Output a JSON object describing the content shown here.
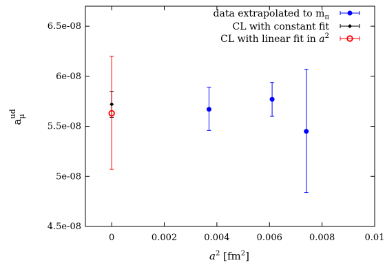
{
  "chart_data": {
    "type": "scatter",
    "title": "",
    "xlabel": "a² [fm²]",
    "ylabel": "aμ ud",
    "xlim": [
      -0.001,
      0.01
    ],
    "ylim": [
      4.5e-08,
      6.7e-08
    ],
    "x_ticks": [
      0,
      0.002,
      0.004,
      0.006,
      0.008
    ],
    "x_tick_labels": [
      "0",
      "0.002",
      "0.004",
      "0.006",
      "0.008"
    ],
    "x_tick_labels_right": "0.01",
    "y_ticks": [
      4.5e-08,
      5e-08,
      5.5e-08,
      6e-08,
      6.5e-08
    ],
    "y_tick_labels": [
      "4.5e-08",
      "5e-08",
      "5.5e-08",
      "6e-08",
      "6.5e-08"
    ],
    "grid": false,
    "legend_position": "top-right",
    "series": [
      {
        "name": "data extrapolated to mπ",
        "color": "#0000ff",
        "marker": "filled-circle",
        "points": [
          {
            "x": 0.0037,
            "y": 5.67e-08,
            "ylo": 5.46e-08,
            "yhi": 5.89e-08
          },
          {
            "x": 0.0061,
            "y": 5.77e-08,
            "ylo": 5.6e-08,
            "yhi": 5.94e-08
          },
          {
            "x": 0.0074,
            "y": 5.45e-08,
            "ylo": 4.84e-08,
            "yhi": 6.07e-08
          }
        ]
      },
      {
        "name": "CL with constant fit",
        "color": "#000000",
        "marker": "small-diamond",
        "points": [
          {
            "x": 0,
            "y": 5.72e-08,
            "ylo": 5.59e-08,
            "yhi": 5.85e-08
          }
        ]
      },
      {
        "name": "CL with linear fit in a²",
        "color": "#ff0000",
        "marker": "open-circle",
        "points": [
          {
            "x": 0,
            "y": 5.63e-08,
            "ylo": 5.07e-08,
            "yhi": 6.2e-08
          }
        ]
      }
    ],
    "legend_entries": [
      {
        "prefix": "data extrapolated to m",
        "sub": "π",
        "sup": ""
      },
      {
        "prefix": "CL with constant fit",
        "sub": "",
        "sup": ""
      },
      {
        "prefix": "CL with linear fit in ",
        "italic": "a",
        "sup": "2"
      }
    ]
  }
}
